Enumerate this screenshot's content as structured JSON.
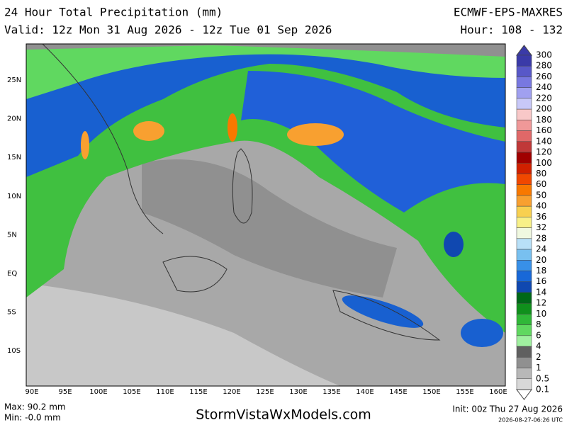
{
  "header": {
    "title": "24 Hour Total Precipitation (mm)",
    "valid": "Valid: 12z Mon 31 Aug 2026 - 12z Tue 01 Sep 2026",
    "model": "ECMWF-EPS-MAXRES",
    "hour": "Hour: 108 - 132"
  },
  "map": {
    "lat_labels": [
      "25N",
      "20N",
      "15N",
      "10N",
      "5N",
      "EQ",
      "5S",
      "10S"
    ],
    "lon_labels": [
      "90E",
      "95E",
      "100E",
      "105E",
      "110E",
      "115E",
      "120E",
      "125E",
      "130E",
      "135E",
      "140E",
      "145E",
      "150E",
      "155E",
      "160E"
    ]
  },
  "legend": {
    "items": [
      {
        "label": "300",
        "color": "#3a3aa8"
      },
      {
        "label": "280",
        "color": "#5858c8"
      },
      {
        "label": "260",
        "color": "#7878e0"
      },
      {
        "label": "240",
        "color": "#a0a0f0"
      },
      {
        "label": "220",
        "color": "#c8c8f8"
      },
      {
        "label": "200",
        "color": "#f8c8c8"
      },
      {
        "label": "180",
        "color": "#f09898"
      },
      {
        "label": "160",
        "color": "#e06868"
      },
      {
        "label": "140",
        "color": "#c03838"
      },
      {
        "label": "120",
        "color": "#a00000"
      },
      {
        "label": "100",
        "color": "#d02000"
      },
      {
        "label": "80",
        "color": "#f04800"
      },
      {
        "label": "60",
        "color": "#f87800"
      },
      {
        "label": "50",
        "color": "#f8a030"
      },
      {
        "label": "40",
        "color": "#f8d050"
      },
      {
        "label": "36",
        "color": "#f8f088"
      },
      {
        "label": "32",
        "color": "#f0f8e0"
      },
      {
        "label": "28",
        "color": "#b8e0f8"
      },
      {
        "label": "24",
        "color": "#78c0f0"
      },
      {
        "label": "20",
        "color": "#3890e8"
      },
      {
        "label": "18",
        "color": "#1868d8"
      },
      {
        "label": "16",
        "color": "#1048b0"
      },
      {
        "label": "14",
        "color": "#006818"
      },
      {
        "label": "12",
        "color": "#10901c"
      },
      {
        "label": "10",
        "color": "#30b838"
      },
      {
        "label": "8",
        "color": "#60d860"
      },
      {
        "label": "6",
        "color": "#a0f0a0"
      },
      {
        "label": "4",
        "color": "#606060"
      },
      {
        "label": "2",
        "color": "#909090"
      },
      {
        "label": "1",
        "color": "#b8b8b8"
      },
      {
        "label": "0.5",
        "color": "#d8d8d8"
      },
      {
        "label": "0.1",
        "color": "#ffffff"
      }
    ]
  },
  "footer": {
    "max": "Max: 90.2 mm",
    "min": "Min: -0.0 mm",
    "site": "StormVistaWxModels.com",
    "init": "Init: 00z Thu 27 Aug 2026",
    "timestamp": "2026-08-27-06:26 UTC"
  }
}
